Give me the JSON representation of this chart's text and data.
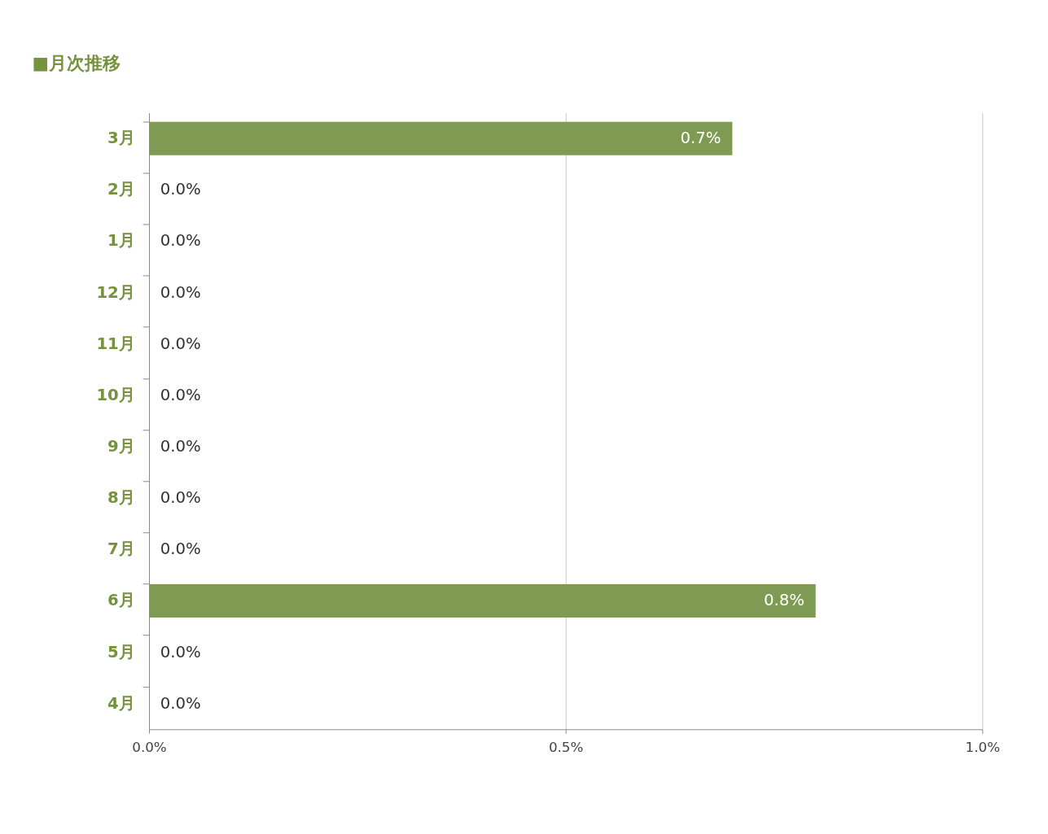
{
  "chart_data": {
    "type": "bar",
    "orientation": "horizontal",
    "title": "■月次推移",
    "categories": [
      "3月",
      "2月",
      "1月",
      "12月",
      "11月",
      "10月",
      "9月",
      "8月",
      "7月",
      "6月",
      "5月",
      "4月"
    ],
    "values": [
      0.7,
      0,
      0,
      0,
      0,
      0,
      0,
      0,
      0,
      0.8,
      0,
      0
    ],
    "value_labels": [
      "0.7%",
      "0.0%",
      "0.0%",
      "0.0%",
      "0.0%",
      "0.0%",
      "0.0%",
      "0.0%",
      "0.0%",
      "0.8%",
      "0.0%",
      "0.0%"
    ],
    "color": "#7f9a52",
    "xlim": [
      0,
      1
    ],
    "xticks": [
      {
        "value": 0,
        "label": "0.0%"
      },
      {
        "value": 0.5,
        "label": "0.5%"
      },
      {
        "value": 1,
        "label": "1.0%"
      }
    ],
    "grid": "x"
  }
}
